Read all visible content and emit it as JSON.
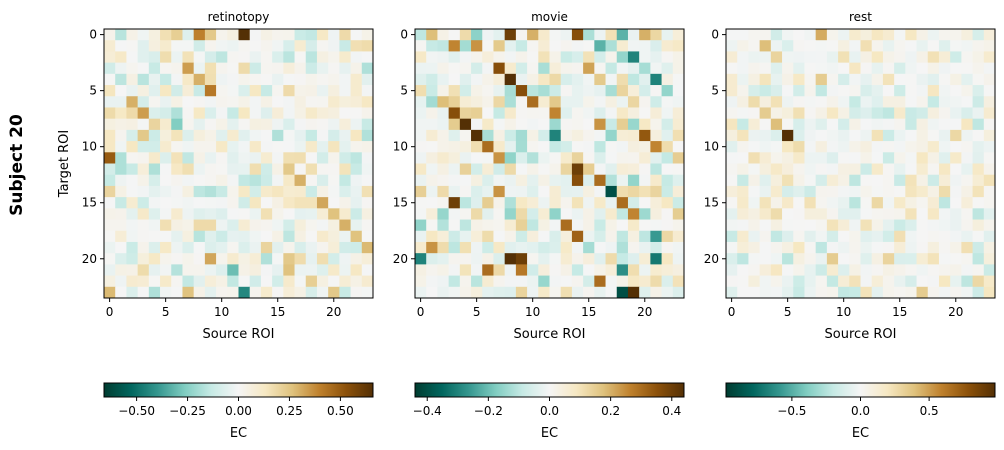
{
  "figure": {
    "row_label": "Subject 20"
  },
  "chart_data": [
    {
      "type": "heatmap",
      "title": "retinotopy",
      "xlabel": "Source ROI",
      "ylabel": "Target ROI",
      "n": 24,
      "xticks": [
        0,
        5,
        10,
        15,
        20
      ],
      "yticks": [
        0,
        5,
        10,
        15,
        20
      ],
      "colormap": "BrBG_r",
      "vlim": [
        -0.66,
        0.66
      ],
      "colorbar": {
        "label": "EC",
        "ticks": [
          -0.5,
          -0.25,
          0.0,
          0.25,
          0.5
        ],
        "tick_labels": [
          "−0.50",
          "−0.25",
          "0.00",
          "0.25",
          "0.50"
        ]
      },
      "strong_cells": [
        {
          "row": 0,
          "col": 1,
          "value": -0.16
        },
        {
          "row": 0,
          "col": 5,
          "value": 0.16
        },
        {
          "row": 0,
          "col": 6,
          "value": 0.22
        },
        {
          "row": 0,
          "col": 8,
          "value": 0.4
        },
        {
          "row": 0,
          "col": 9,
          "value": 0.24
        },
        {
          "row": 0,
          "col": 12,
          "value": 0.66
        },
        {
          "row": 0,
          "col": 18,
          "value": -0.14
        },
        {
          "row": 0,
          "col": 21,
          "value": 0.18
        },
        {
          "row": 2,
          "col": 1,
          "value": 0.12
        },
        {
          "row": 3,
          "col": 7,
          "value": 0.34
        },
        {
          "row": 4,
          "col": 8,
          "value": 0.3
        },
        {
          "row": 5,
          "col": 9,
          "value": 0.42
        },
        {
          "row": 6,
          "col": 2,
          "value": 0.3
        },
        {
          "row": 7,
          "col": 2,
          "value": 0.18
        },
        {
          "row": 7,
          "col": 3,
          "value": 0.34
        },
        {
          "row": 8,
          "col": 4,
          "value": 0.2
        },
        {
          "row": 8,
          "col": 5,
          "value": 0.1
        },
        {
          "row": 8,
          "col": 6,
          "value": -0.26
        },
        {
          "row": 9,
          "col": 3,
          "value": 0.24
        },
        {
          "row": 11,
          "col": 0,
          "value": 0.5
        },
        {
          "row": 12,
          "col": 16,
          "value": 0.24
        },
        {
          "row": 13,
          "col": 17,
          "value": 0.3
        },
        {
          "row": 14,
          "col": 0,
          "value": 0.2
        },
        {
          "row": 15,
          "col": 19,
          "value": 0.32
        },
        {
          "row": 16,
          "col": 20,
          "value": 0.26
        },
        {
          "row": 17,
          "col": 21,
          "value": 0.3
        },
        {
          "row": 18,
          "col": 22,
          "value": 0.26
        },
        {
          "row": 19,
          "col": 14,
          "value": 0.2
        },
        {
          "row": 19,
          "col": 23,
          "value": 0.28
        },
        {
          "row": 20,
          "col": 9,
          "value": 0.32
        },
        {
          "row": 20,
          "col": 16,
          "value": 0.24
        },
        {
          "row": 21,
          "col": 11,
          "value": -0.3
        },
        {
          "row": 21,
          "col": 16,
          "value": 0.26
        },
        {
          "row": 22,
          "col": 18,
          "value": 0.22
        },
        {
          "row": 23,
          "col": 0,
          "value": 0.28
        },
        {
          "row": 23,
          "col": 7,
          "value": 0.26
        },
        {
          "row": 23,
          "col": 12,
          "value": -0.44
        },
        {
          "row": 23,
          "col": 20,
          "value": 0.24
        }
      ]
    },
    {
      "type": "heatmap",
      "title": "movie",
      "xlabel": "Source ROI",
      "ylabel": "",
      "n": 24,
      "xticks": [
        0,
        5,
        10,
        15,
        20
      ],
      "yticks": [
        0,
        5,
        10,
        15,
        20
      ],
      "colormap": "BrBG_r",
      "vlim": [
        -0.44,
        0.44
      ],
      "colorbar": {
        "label": "EC",
        "ticks": [
          -0.4,
          -0.2,
          0.0,
          0.2,
          0.4
        ],
        "tick_labels": [
          "−0.4",
          "−0.2",
          "0.0",
          "0.2",
          "0.4"
        ]
      },
      "strong_cells": [
        {
          "row": 0,
          "col": 1,
          "value": 0.18
        },
        {
          "row": 0,
          "col": 5,
          "value": -0.16
        },
        {
          "row": 0,
          "col": 8,
          "value": 0.4
        },
        {
          "row": 0,
          "col": 10,
          "value": 0.2
        },
        {
          "row": 0,
          "col": 14,
          "value": 0.36
        },
        {
          "row": 0,
          "col": 18,
          "value": -0.22
        },
        {
          "row": 0,
          "col": 20,
          "value": 0.2
        },
        {
          "row": 1,
          "col": 3,
          "value": 0.26
        },
        {
          "row": 1,
          "col": 5,
          "value": 0.24
        },
        {
          "row": 1,
          "col": 16,
          "value": -0.22
        },
        {
          "row": 2,
          "col": 19,
          "value": -0.3
        },
        {
          "row": 3,
          "col": 7,
          "value": 0.36
        },
        {
          "row": 3,
          "col": 15,
          "value": 0.22
        },
        {
          "row": 4,
          "col": 8,
          "value": 0.44
        },
        {
          "row": 4,
          "col": 21,
          "value": -0.3
        },
        {
          "row": 5,
          "col": 9,
          "value": 0.36
        },
        {
          "row": 6,
          "col": 2,
          "value": 0.18
        },
        {
          "row": 6,
          "col": 10,
          "value": 0.3
        },
        {
          "row": 7,
          "col": 3,
          "value": 0.36
        },
        {
          "row": 7,
          "col": 12,
          "value": 0.26
        },
        {
          "row": 8,
          "col": 4,
          "value": 0.44
        },
        {
          "row": 8,
          "col": 16,
          "value": 0.24
        },
        {
          "row": 9,
          "col": 5,
          "value": 0.44
        },
        {
          "row": 9,
          "col": 12,
          "value": -0.3
        },
        {
          "row": 9,
          "col": 20,
          "value": 0.34
        },
        {
          "row": 10,
          "col": 6,
          "value": 0.3
        },
        {
          "row": 10,
          "col": 21,
          "value": 0.26
        },
        {
          "row": 11,
          "col": 7,
          "value": 0.24
        },
        {
          "row": 12,
          "col": 14,
          "value": 0.4
        },
        {
          "row": 13,
          "col": 14,
          "value": 0.36
        },
        {
          "row": 13,
          "col": 16,
          "value": 0.3
        },
        {
          "row": 14,
          "col": 17,
          "value": -0.4
        },
        {
          "row": 14,
          "col": 7,
          "value": 0.24
        },
        {
          "row": 15,
          "col": 3,
          "value": 0.4
        },
        {
          "row": 15,
          "col": 18,
          "value": 0.3
        },
        {
          "row": 16,
          "col": 19,
          "value": 0.26
        },
        {
          "row": 17,
          "col": 13,
          "value": 0.3
        },
        {
          "row": 18,
          "col": 14,
          "value": 0.32
        },
        {
          "row": 18,
          "col": 21,
          "value": -0.26
        },
        {
          "row": 19,
          "col": 1,
          "value": 0.24
        },
        {
          "row": 20,
          "col": 0,
          "value": -0.3
        },
        {
          "row": 20,
          "col": 8,
          "value": 0.44
        },
        {
          "row": 20,
          "col": 9,
          "value": 0.4
        },
        {
          "row": 20,
          "col": 21,
          "value": -0.32
        },
        {
          "row": 21,
          "col": 6,
          "value": 0.3
        },
        {
          "row": 21,
          "col": 9,
          "value": 0.28
        },
        {
          "row": 21,
          "col": 18,
          "value": -0.28
        },
        {
          "row": 22,
          "col": 16,
          "value": 0.3
        },
        {
          "row": 23,
          "col": 18,
          "value": -0.4
        },
        {
          "row": 23,
          "col": 19,
          "value": 0.44
        }
      ]
    },
    {
      "type": "heatmap",
      "title": "rest",
      "xlabel": "Source ROI",
      "ylabel": "",
      "n": 24,
      "xticks": [
        0,
        5,
        10,
        15,
        20
      ],
      "yticks": [
        0,
        5,
        10,
        15,
        20
      ],
      "colormap": "BrBG_r",
      "vlim": [
        -0.98,
        0.98
      ],
      "colorbar": {
        "label": "EC",
        "ticks": [
          -0.5,
          0.0,
          0.5
        ],
        "tick_labels": [
          "−0.5",
          "0.0",
          "0.5"
        ]
      },
      "strong_cells": [
        {
          "row": 0,
          "col": 8,
          "value": 0.46
        },
        {
          "row": 0,
          "col": 13,
          "value": 0.2
        },
        {
          "row": 1,
          "col": 3,
          "value": 0.4
        },
        {
          "row": 1,
          "col": 12,
          "value": 0.24
        },
        {
          "row": 2,
          "col": 4,
          "value": 0.3
        },
        {
          "row": 3,
          "col": 11,
          "value": 0.2
        },
        {
          "row": 4,
          "col": 8,
          "value": 0.34
        },
        {
          "row": 5,
          "col": 18,
          "value": 0.2
        },
        {
          "row": 6,
          "col": 2,
          "value": 0.26
        },
        {
          "row": 7,
          "col": 3,
          "value": 0.34
        },
        {
          "row": 8,
          "col": 4,
          "value": 0.4
        },
        {
          "row": 8,
          "col": 21,
          "value": 0.2
        },
        {
          "row": 9,
          "col": 5,
          "value": 0.98
        },
        {
          "row": 9,
          "col": 20,
          "value": 0.28
        },
        {
          "row": 10,
          "col": 6,
          "value": 0.26
        },
        {
          "row": 11,
          "col": 2,
          "value": 0.24
        },
        {
          "row": 13,
          "col": 16,
          "value": 0.22
        },
        {
          "row": 14,
          "col": 19,
          "value": 0.26
        },
        {
          "row": 15,
          "col": 3,
          "value": 0.22
        },
        {
          "row": 15,
          "col": 13,
          "value": 0.28
        },
        {
          "row": 16,
          "col": 4,
          "value": 0.26
        },
        {
          "row": 17,
          "col": 9,
          "value": 0.22
        },
        {
          "row": 18,
          "col": 15,
          "value": 0.24
        },
        {
          "row": 19,
          "col": 21,
          "value": 0.24
        },
        {
          "row": 20,
          "col": 1,
          "value": -0.22
        },
        {
          "row": 20,
          "col": 9,
          "value": 0.34
        },
        {
          "row": 20,
          "col": 14,
          "value": 0.3
        },
        {
          "row": 21,
          "col": 4,
          "value": 0.2
        },
        {
          "row": 22,
          "col": 22,
          "value": 0.28
        },
        {
          "row": 23,
          "col": 17,
          "value": 0.34
        }
      ]
    }
  ]
}
